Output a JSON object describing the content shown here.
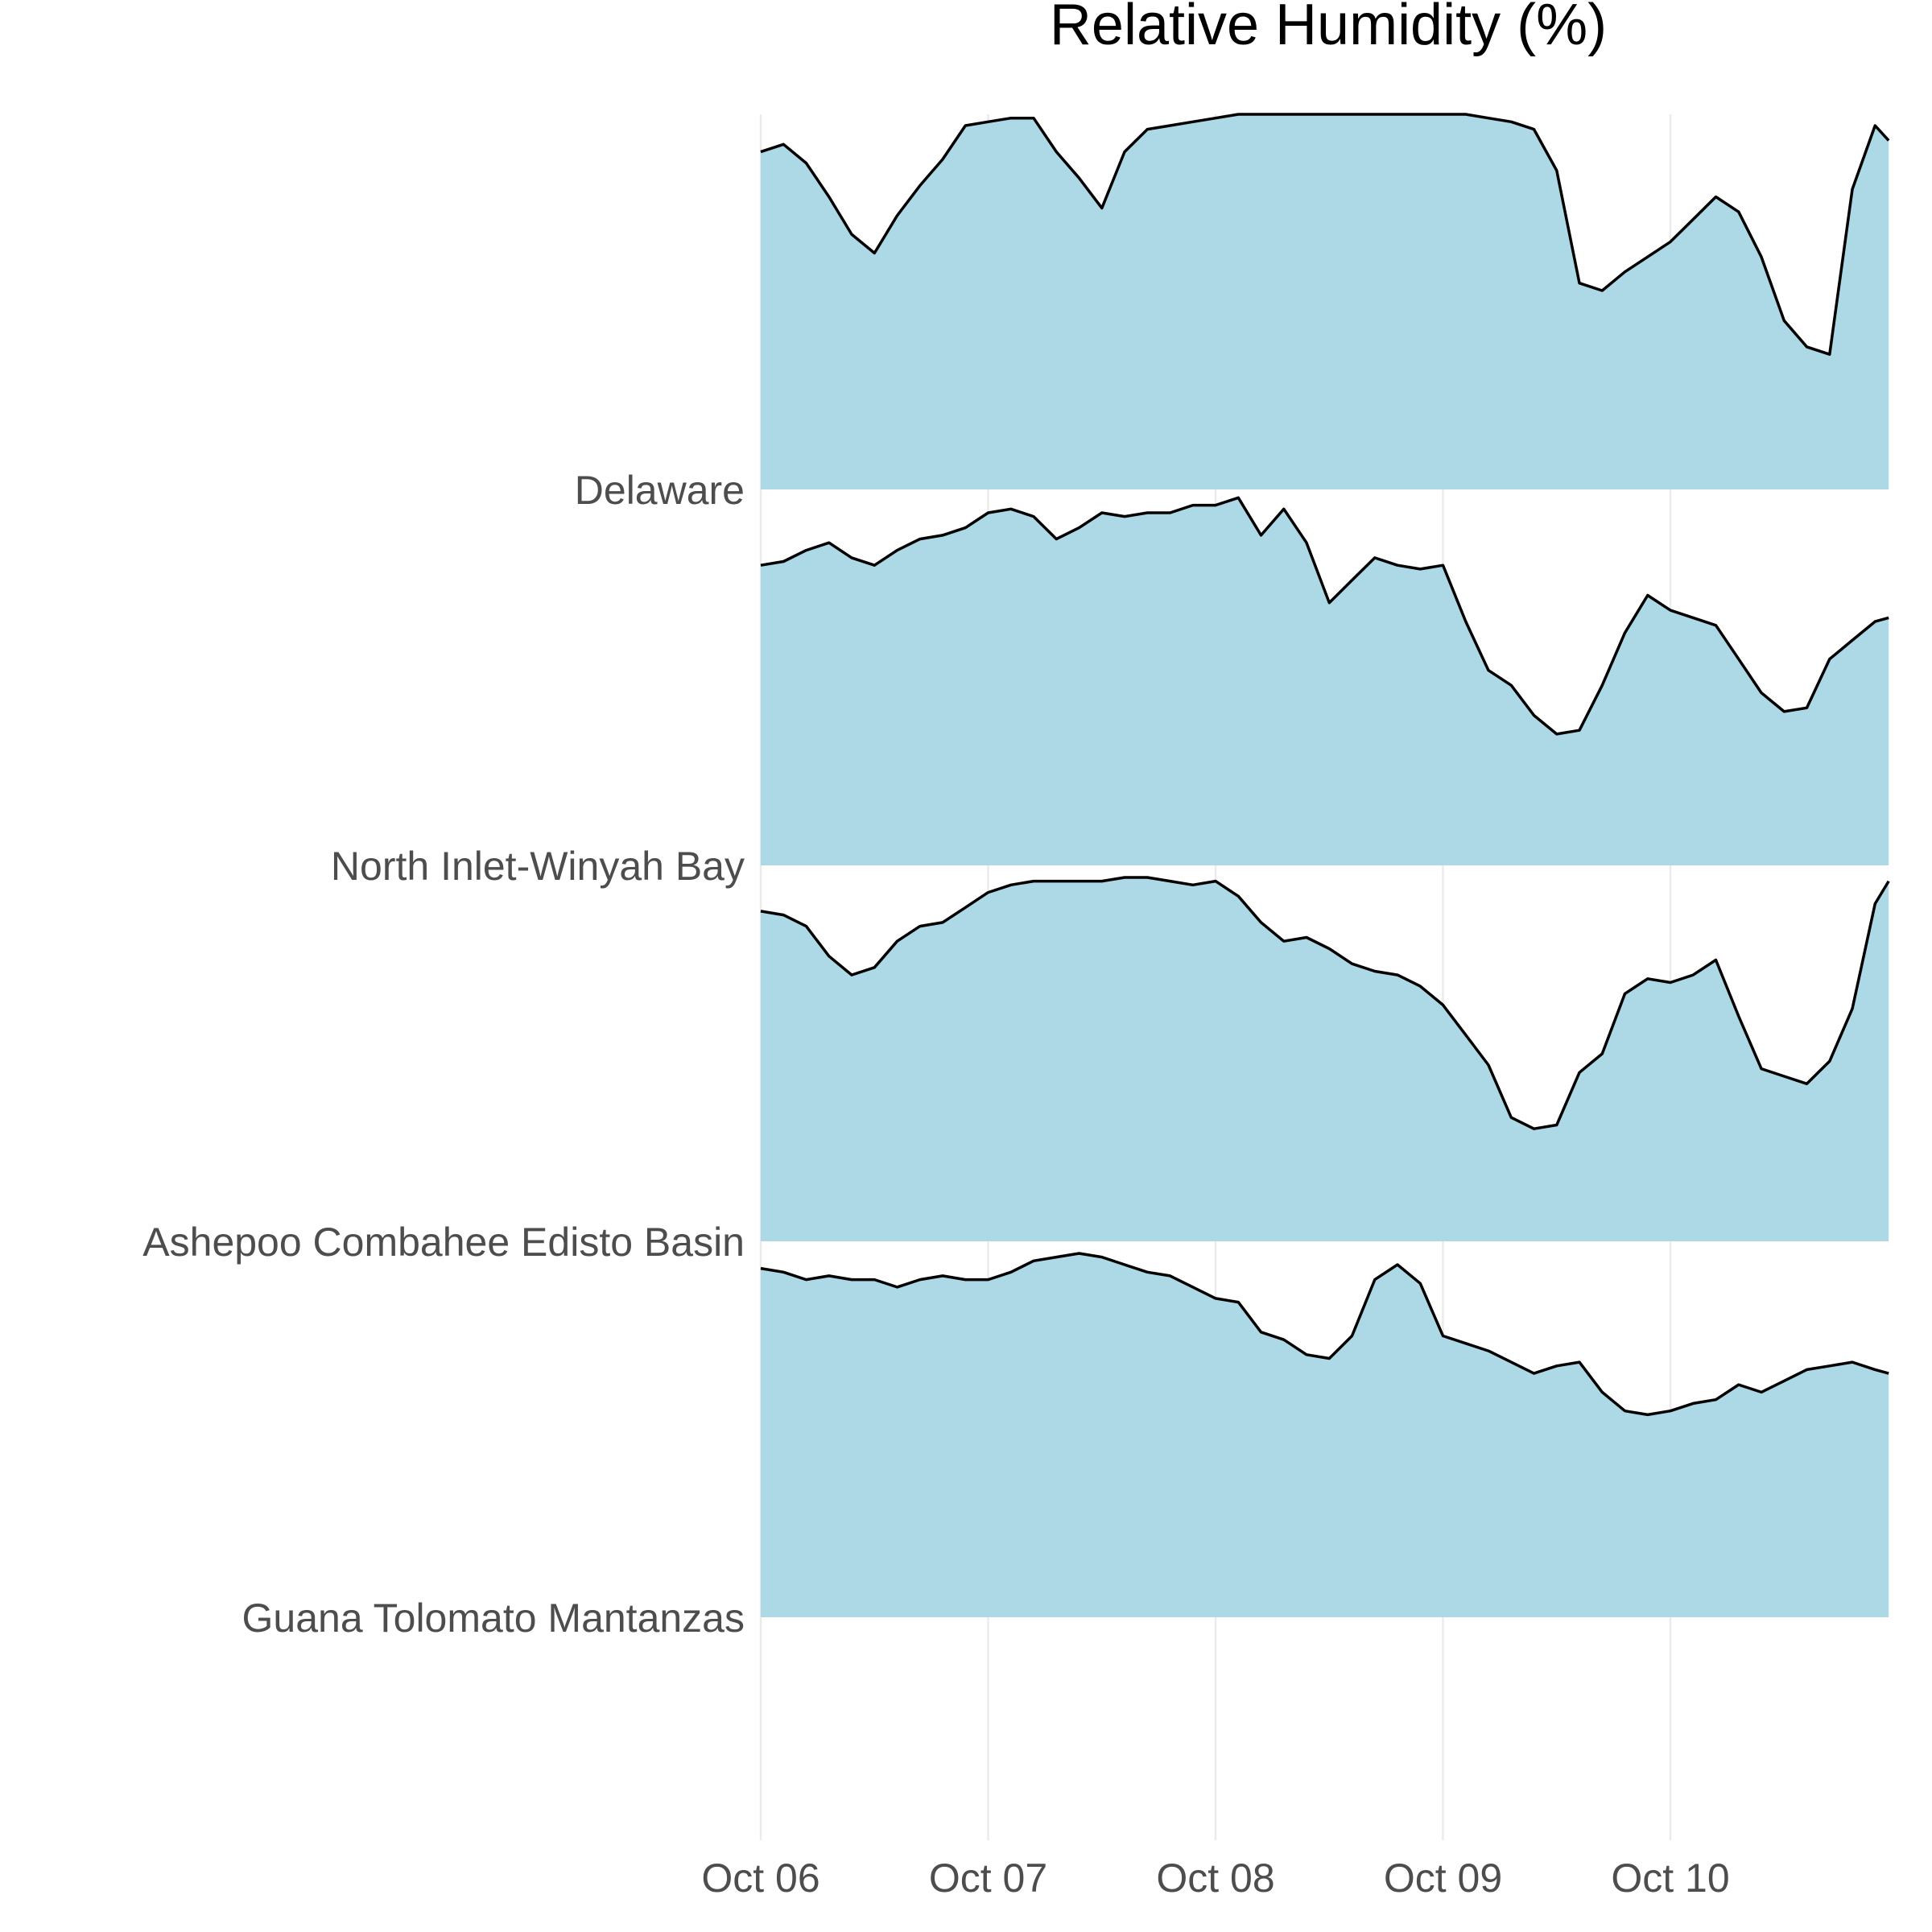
{
  "chart_data": {
    "type": "ridgeline",
    "title": "Relative Humidity (%)",
    "xlabel": "",
    "ylabel": "",
    "grid": true,
    "legend": "none",
    "fill_color": "#add8e6",
    "line_color": "#000000",
    "x_ticks": [
      "Oct 06",
      "Oct 07",
      "Oct 08",
      "Oct 09",
      "Oct 10"
    ],
    "x_range": [
      0,
      4.96
    ],
    "y_range": [
      0,
      100
    ],
    "series": [
      {
        "name": "Delaware",
        "x": [
          0,
          0.1,
          0.2,
          0.3,
          0.4,
          0.5,
          0.6,
          0.7,
          0.8,
          0.9,
          1.0,
          1.1,
          1.2,
          1.3,
          1.4,
          1.5,
          1.6,
          1.7,
          1.8,
          1.9,
          2.0,
          2.1,
          2.2,
          2.3,
          2.4,
          2.5,
          2.6,
          2.7,
          2.8,
          2.9,
          3.0,
          3.1,
          3.2,
          3.3,
          3.4,
          3.5,
          3.6,
          3.7,
          3.8,
          3.9,
          4.0,
          4.1,
          4.2,
          4.3,
          4.4,
          4.5,
          4.6,
          4.7,
          4.8,
          4.9,
          4.96
        ],
        "values": [
          90,
          92,
          87,
          78,
          68,
          63,
          73,
          81,
          88,
          97,
          98,
          99,
          99,
          90,
          83,
          75,
          90,
          96,
          97,
          98,
          99,
          100,
          100,
          100,
          100,
          100,
          100,
          100,
          100,
          100,
          100,
          100,
          99,
          98,
          96,
          85,
          55,
          53,
          58,
          62,
          66,
          72,
          78,
          74,
          62,
          45,
          38,
          36,
          80,
          97,
          93
        ]
      },
      {
        "name": "North Inlet-Winyah Bay",
        "x": [
          0,
          0.1,
          0.2,
          0.3,
          0.4,
          0.5,
          0.6,
          0.7,
          0.8,
          0.9,
          1.0,
          1.1,
          1.2,
          1.3,
          1.4,
          1.5,
          1.6,
          1.7,
          1.8,
          1.9,
          2.0,
          2.1,
          2.2,
          2.3,
          2.4,
          2.5,
          2.6,
          2.7,
          2.8,
          2.9,
          3.0,
          3.1,
          3.2,
          3.3,
          3.4,
          3.5,
          3.6,
          3.7,
          3.8,
          3.9,
          4.0,
          4.1,
          4.2,
          4.3,
          4.4,
          4.5,
          4.6,
          4.7,
          4.8,
          4.9,
          4.96
        ],
        "values": [
          80,
          81,
          84,
          86,
          82,
          80,
          84,
          87,
          88,
          90,
          94,
          95,
          93,
          87,
          90,
          94,
          93,
          94,
          94,
          96,
          96,
          98,
          88,
          95,
          86,
          70,
          76,
          82,
          80,
          79,
          80,
          65,
          52,
          48,
          40,
          35,
          36,
          48,
          62,
          72,
          68,
          66,
          64,
          55,
          46,
          41,
          42,
          55,
          60,
          65,
          66
        ]
      },
      {
        "name": "Ashepoo Combahee Edisto Basin",
        "x": [
          0,
          0.1,
          0.2,
          0.3,
          0.4,
          0.5,
          0.6,
          0.7,
          0.8,
          0.9,
          1.0,
          1.1,
          1.2,
          1.3,
          1.4,
          1.5,
          1.6,
          1.7,
          1.8,
          1.9,
          2.0,
          2.1,
          2.2,
          2.3,
          2.4,
          2.5,
          2.6,
          2.7,
          2.8,
          2.9,
          3.0,
          3.1,
          3.2,
          3.3,
          3.4,
          3.5,
          3.6,
          3.7,
          3.8,
          3.9,
          4.0,
          4.1,
          4.2,
          4.3,
          4.4,
          4.5,
          4.6,
          4.7,
          4.8,
          4.9,
          4.96
        ],
        "values": [
          88,
          87,
          84,
          76,
          71,
          73,
          80,
          84,
          85,
          89,
          93,
          95,
          96,
          96,
          96,
          96,
          97,
          97,
          96,
          95,
          96,
          92,
          85,
          80,
          81,
          78,
          74,
          72,
          71,
          68,
          63,
          55,
          47,
          33,
          30,
          31,
          45,
          50,
          66,
          70,
          69,
          71,
          75,
          60,
          46,
          44,
          42,
          48,
          62,
          90,
          96
        ]
      },
      {
        "name": "Guana Tolomato Mantanzas",
        "x": [
          0,
          0.1,
          0.2,
          0.3,
          0.4,
          0.5,
          0.6,
          0.7,
          0.8,
          0.9,
          1.0,
          1.1,
          1.2,
          1.3,
          1.4,
          1.5,
          1.6,
          1.7,
          1.8,
          1.9,
          2.0,
          2.1,
          2.2,
          2.3,
          2.4,
          2.5,
          2.6,
          2.7,
          2.8,
          2.9,
          3.0,
          3.1,
          3.2,
          3.3,
          3.4,
          3.5,
          3.6,
          3.7,
          3.8,
          3.9,
          4.0,
          4.1,
          4.2,
          4.3,
          4.4,
          4.5,
          4.6,
          4.7,
          4.8,
          4.9,
          4.96
        ],
        "values": [
          93,
          92,
          90,
          91,
          90,
          90,
          88,
          90,
          91,
          90,
          90,
          92,
          95,
          96,
          97,
          96,
          94,
          92,
          91,
          88,
          85,
          84,
          76,
          74,
          70,
          69,
          75,
          90,
          94,
          89,
          75,
          73,
          71,
          68,
          65,
          67,
          68,
          60,
          55,
          54,
          55,
          57,
          58,
          62,
          60,
          63,
          66,
          67,
          68,
          66,
          65
        ]
      }
    ]
  }
}
